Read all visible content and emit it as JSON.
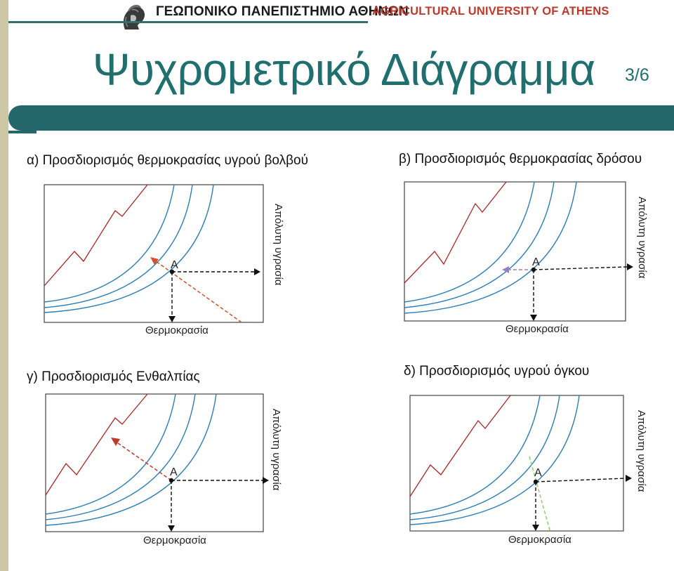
{
  "header": {
    "university_greek": "ΓΕΩΠΟΝΙΚΟ ΠΑΝΕΠΙΣΤΗΜΙΟ ΑΘΗΝΩΝ",
    "university_english": "AGRICULTURAL UNIVERSITY OF ATHENS",
    "logo_icon": "athena-head-logo",
    "accent_color": "#23676a",
    "brand_red": "#c0392b"
  },
  "slide": {
    "title": "Ψυχρομετρικό Διάγραμμα",
    "page": "3/6"
  },
  "panels": [
    {
      "heading": "α) Προσδιορισμός θερμοκρασίας υγρού βολβού",
      "xlabel": "Θερμοκρασία",
      "ylabel": "Απόλυτη υγρασία",
      "point": "Α",
      "arrow_color": "#d9502a"
    },
    {
      "heading": "β) Προσδιορισμός θερμοκρασίας δρόσου",
      "xlabel": "Θερμοκρασία",
      "ylabel": "Απόλυτη υγρασία",
      "point": "Α",
      "arrow_color": "#9b7fc0"
    },
    {
      "heading": "γ) Προσδιορισμός Ενθαλπίας",
      "xlabel": "Θερμοκρασία",
      "ylabel": "Απόλυτη υγρασία",
      "point": "Α",
      "arrow_color": "#c0392b"
    },
    {
      "heading": "δ) Προσδιορισμός υγρού όγκου",
      "xlabel": "Θερμοκρασία",
      "ylabel": "Απόλυτη υγρασία",
      "point": "Α",
      "arrow_color": "#8fd16a"
    }
  ]
}
